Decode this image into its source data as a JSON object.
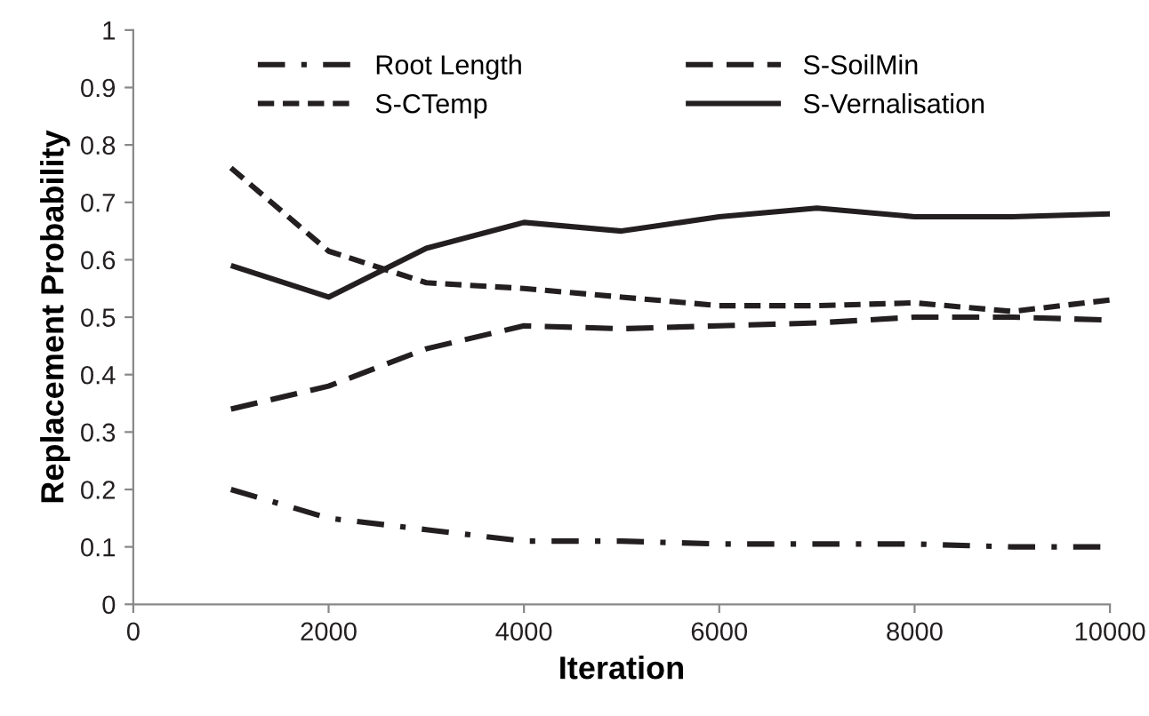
{
  "chart_data": {
    "type": "line",
    "xlabel": "Iteration",
    "ylabel": "Replacement Probability",
    "x": [
      1000,
      2000,
      3000,
      4000,
      5000,
      6000,
      7000,
      8000,
      9000,
      10000
    ],
    "series": [
      {
        "name": "Root Length",
        "color": "#231f20",
        "line_style": "dashdot",
        "values": [
          0.2,
          0.15,
          0.13,
          0.11,
          0.11,
          0.105,
          0.105,
          0.105,
          0.1,
          0.1
        ]
      },
      {
        "name": "S-SoilMin",
        "color": "#231f20",
        "line_style": "dashed",
        "values": [
          0.34,
          0.38,
          0.445,
          0.485,
          0.48,
          0.485,
          0.49,
          0.5,
          0.5,
          0.495
        ]
      },
      {
        "name": "S-CTemp",
        "color": "#231f20",
        "line_style": "dotted",
        "values": [
          0.76,
          0.615,
          0.56,
          0.55,
          0.535,
          0.52,
          0.52,
          0.525,
          0.51,
          0.53
        ]
      },
      {
        "name": "S-Vernalisation",
        "color": "#231f20",
        "line_style": "solid",
        "values": [
          0.59,
          0.535,
          0.62,
          0.665,
          0.65,
          0.675,
          0.69,
          0.675,
          0.675,
          0.68
        ]
      }
    ],
    "xlim": [
      0,
      10000
    ],
    "xticks": [
      0,
      2000,
      4000,
      6000,
      8000,
      10000
    ],
    "ylim": [
      0,
      1
    ],
    "yticks": [
      0,
      0.1,
      0.2,
      0.3,
      0.4,
      0.5,
      0.6,
      0.7,
      0.8,
      0.9,
      1
    ],
    "grid": false,
    "legend": "top",
    "marker": "none"
  }
}
